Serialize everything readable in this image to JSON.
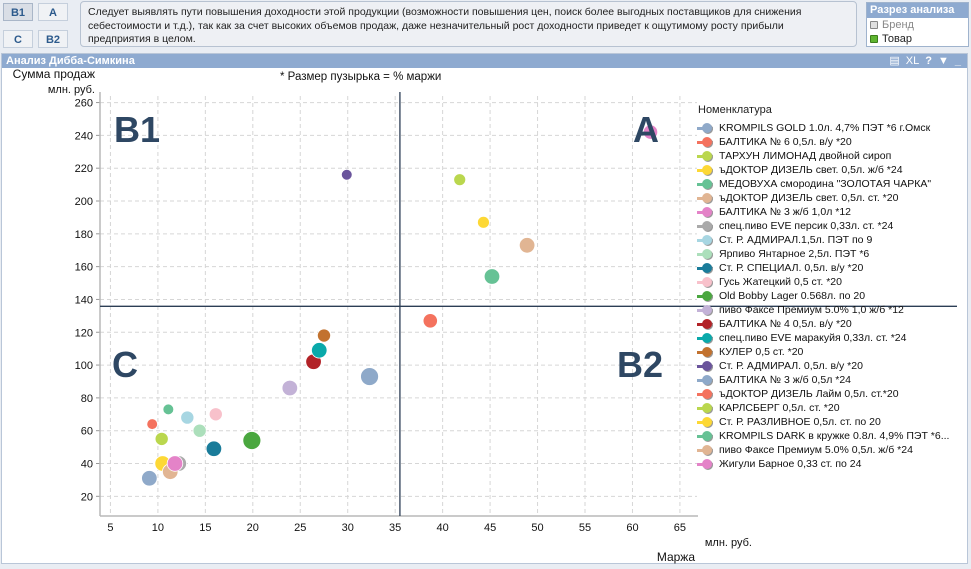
{
  "quadrant_buttons": [
    {
      "id": "b1",
      "label": "B1",
      "active": true
    },
    {
      "id": "a",
      "label": "A",
      "active": false
    },
    {
      "id": "c",
      "label": "C",
      "active": false
    },
    {
      "id": "b2",
      "label": "B2",
      "active": false
    }
  ],
  "note": "Следует выявлять пути повышения доходности этой продукции (возможности повышения цен, поиск более выгодных поставщиков для снижения себестоимости и т.д.), так как за счет высоких объемов продаж, даже незначительный рост доходности приведет к ощутимому росту прибыли предприятия в целом.",
  "slice": {
    "title": "Разрез анализа",
    "options": [
      {
        "label": "Бренд",
        "selected": false
      },
      {
        "label": "Товар",
        "selected": true
      }
    ]
  },
  "panel": {
    "title": "Анализ Дибба-Симкина",
    "tools": [
      "print-icon",
      "XL",
      "?",
      "▼",
      "_"
    ]
  },
  "chart_data": {
    "type": "scatter",
    "title": "",
    "subtitle": "* Размер пузырька = % маржи",
    "ylabel": "Сумма продаж",
    "ylabel_unit": "млн. руб.",
    "xlabel": "Маржа",
    "xlabel_unit": "млн. руб.",
    "xlim": [
      3.9,
      66.8
    ],
    "ylim": [
      8,
      264
    ],
    "xticks": [
      5,
      10,
      15,
      20,
      25,
      30,
      35,
      40,
      45,
      50,
      55,
      60,
      65
    ],
    "yticks": [
      20,
      40,
      60,
      80,
      100,
      120,
      140,
      160,
      180,
      200,
      220,
      240,
      260
    ],
    "grid": true,
    "ref_lines": {
      "x": 35.5,
      "y": 135.8
    },
    "quadrant_labels": [
      {
        "label": "B1",
        "position": "top-left"
      },
      {
        "label": "A",
        "position": "top-right"
      },
      {
        "label": "C",
        "position": "bottom-left"
      },
      {
        "label": "B2",
        "position": "bottom-right"
      }
    ],
    "legend_title": "Номенклатура",
    "legend_position": "right",
    "series": [
      {
        "name": "KROMPILS GOLD 1.0л. 4,7% ПЭТ *6 г.Омск",
        "color": "#8fa9c9",
        "x": 9.1,
        "y": 31,
        "size": 1.3
      },
      {
        "name": "БАЛТИКА № 6 0,5л. в/у *20",
        "color": "#f4725e",
        "x": 38.7,
        "y": 127,
        "size": 1.2
      },
      {
        "name": "ТАРХУН ЛИМОНАД двойной сироп",
        "color": "#bad74e",
        "x": 41.8,
        "y": 213,
        "size": 1.0
      },
      {
        "name": "ъДОКТОР ДИЗЕЛЬ свет. 0,5л. ж/б *24",
        "color": "#fdd835",
        "x": 44.3,
        "y": 187,
        "size": 1.0
      },
      {
        "name": "МЕДОВУХА смородина \"ЗОЛОТАЯ ЧАРКА\"",
        "color": "#66c295",
        "x": 45.2,
        "y": 154,
        "size": 1.3
      },
      {
        "name": "ъДОКТОР ДИЗЕЛЬ свет. 0,5л. ст. *20",
        "color": "#e1b593",
        "x": 48.9,
        "y": 173,
        "size": 1.3
      },
      {
        "name": "БАЛТИКА № 3 ж/б 1,0л *12",
        "color": "#e483c8",
        "x": 61.9,
        "y": 242,
        "size": 1.2
      },
      {
        "name": "спец.пиво EVE персик 0,33л. ст. *24",
        "color": "#aaaaaa",
        "x": 12.2,
        "y": 40,
        "size": 1.3
      },
      {
        "name": "Ст. Р. АДМИРАЛ.1,5л. ПЭТ по 9",
        "color": "#a7d6e2",
        "x": 13.1,
        "y": 68,
        "size": 1.1
      },
      {
        "name": "Ярпиво Янтарное 2,5л. ПЭТ *6",
        "color": "#acdfbb",
        "x": 14.4,
        "y": 60,
        "size": 1.1
      },
      {
        "name": "Ст. Р. СПЕЦИАЛ. 0,5л. в/у *20",
        "color": "#1a7c9a",
        "x": 15.9,
        "y": 49,
        "size": 1.3
      },
      {
        "name": "Гусь Жатецкий 0,5 ст. *20",
        "color": "#f8c1cb",
        "x": 16.1,
        "y": 70,
        "size": 1.1
      },
      {
        "name": "Old Bobby Lager 0.568л. по 20",
        "color": "#4aa73f",
        "x": 19.9,
        "y": 54,
        "size": 1.5
      },
      {
        "name": "пиво Факсе Премиум 5.0%  1,0 ж/б *12",
        "color": "#c3b2d7",
        "x": 23.9,
        "y": 86,
        "size": 1.3
      },
      {
        "name": "БАЛТИКА № 4 0,5л. в/у *20",
        "color": "#b22227",
        "x": 26.4,
        "y": 102,
        "size": 1.3
      },
      {
        "name": "спец.пиво EVE маракуйя 0,33л. ст. *24",
        "color": "#0aa9aa",
        "x": 27.0,
        "y": 109,
        "size": 1.3
      },
      {
        "name": "КУЛЕР 0,5 ст. *20",
        "color": "#c2722f",
        "x": 27.5,
        "y": 118,
        "size": 1.1
      },
      {
        "name": "Ст. Р. АДМИРАЛ. 0,5л. в/у *20",
        "color": "#6a549c",
        "x": 29.9,
        "y": 216,
        "size": 0.9
      },
      {
        "name": "БАЛТИКА № 3 ж/б 0,5л *24",
        "color": "#8ea9c9",
        "x": 32.3,
        "y": 93,
        "size": 1.5
      },
      {
        "name": "ъДОКТОР ДИЗЕЛЬ Лайм 0,5л. ст.*20",
        "color": "#f4725e",
        "x": 9.4,
        "y": 64,
        "size": 0.9
      },
      {
        "name": "КАРЛСБЕРГ 0,5л. ст. *20",
        "color": "#bad74e",
        "x": 10.4,
        "y": 55,
        "size": 1.1
      },
      {
        "name": "Ст. Р. РАЗЛИВНОЕ  0,5л. ст. по 20",
        "color": "#fdd835",
        "x": 10.5,
        "y": 40,
        "size": 1.3
      },
      {
        "name": "KROMPILS DARK в кружке 0.8л. 4,9% ПЭТ *6...",
        "color": "#66c295",
        "x": 11.1,
        "y": 73,
        "size": 0.9
      },
      {
        "name": "пиво Факсе Премиум 5.0%  0,5л. ж/б *24",
        "color": "#e1b593",
        "x": 11.3,
        "y": 35,
        "size": 1.3
      },
      {
        "name": "Жигули Барное 0,33 ст. по 24",
        "color": "#e483c8",
        "x": 11.8,
        "y": 40,
        "size": 1.3
      }
    ]
  }
}
